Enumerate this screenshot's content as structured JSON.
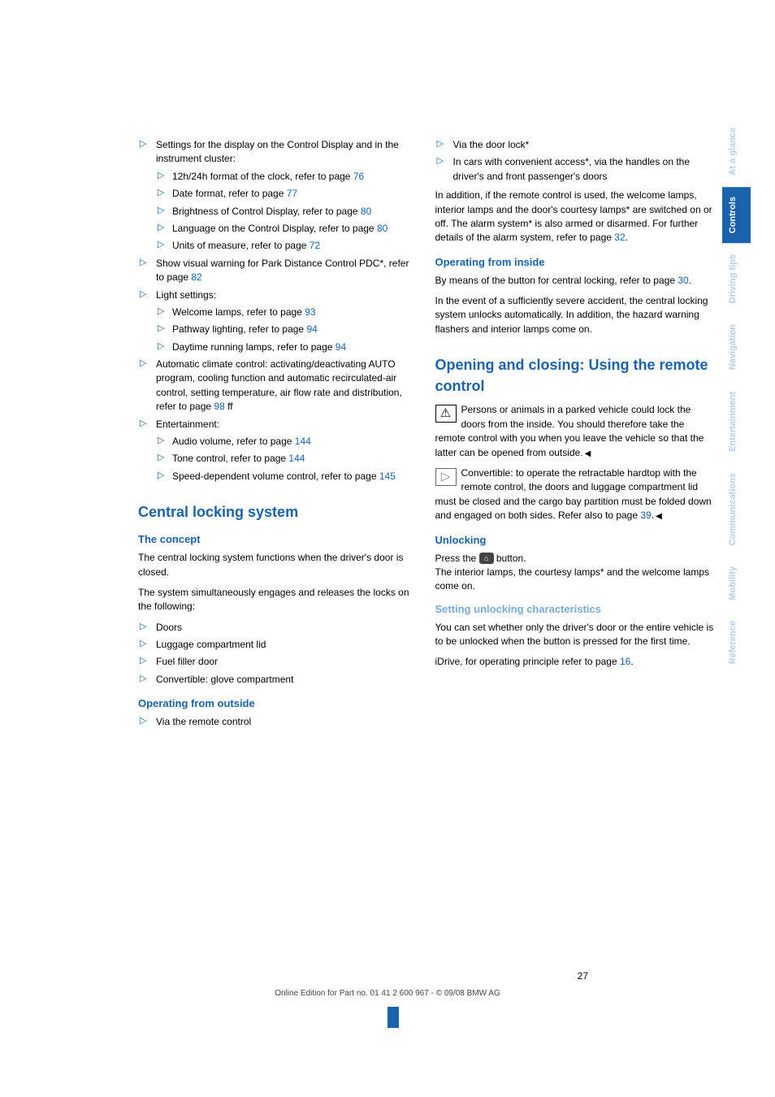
{
  "colors": {
    "primary": "#1a62ac",
    "light": "#7aa9d9",
    "dim_tab": "#b8cde5",
    "text": "#000000",
    "bg": "#ffffff"
  },
  "left": {
    "top_item": "Settings for the display on the Control Display and in the instrument cluster:",
    "top_sub": [
      {
        "t": "12h/24h format of the clock, refer to page ",
        "p": "76"
      },
      {
        "t": "Date format, refer to page ",
        "p": "77"
      },
      {
        "t": "Brightness of Control Display, refer to page ",
        "p": "80"
      },
      {
        "t": "Language on the Control Display, refer to page ",
        "p": "80"
      },
      {
        "t": "Units of measure, refer to page ",
        "p": "72"
      }
    ],
    "pdc": {
      "pre": "Show visual warning for Park Distance Control PDC",
      "star": "*",
      "mid": ", refer to page ",
      "p": "82"
    },
    "light_label": "Light settings:",
    "light_sub": [
      {
        "t": "Welcome lamps, refer to page ",
        "p": "93"
      },
      {
        "t": "Pathway lighting, refer to page ",
        "p": "94"
      },
      {
        "t": "Daytime running lamps, refer to page ",
        "p": "94"
      }
    ],
    "auto": {
      "t": "Automatic climate control: activating/deactivating AUTO program, cooling function and automatic recirculated-air control, setting temperature, air flow rate and distribution, refer to page ",
      "p": "98",
      "suf": " ff"
    },
    "ent_label": "Entertainment:",
    "ent_sub": [
      {
        "t": "Audio volume, refer to page ",
        "p": "144"
      },
      {
        "t": "Tone control, refer to page ",
        "p": "144"
      },
      {
        "t": "Speed-dependent volume control, refer to page ",
        "p": "145"
      }
    ],
    "h_central": "Central locking system",
    "h_concept": "The concept",
    "p_concept1": "The central locking system functions when the driver's door is closed.",
    "p_concept2": "The system simultaneously engages and releases the locks on the following:",
    "concept_items": [
      "Doors",
      "Luggage compartment lid",
      "Fuel filler door",
      "Convertible: glove compartment"
    ],
    "h_outside": "Operating from outside",
    "outside_item": "Via the remote control"
  },
  "right": {
    "top_items": [
      {
        "t": "Via the door lock",
        "star": "*"
      },
      {
        "t": "In cars with convenient access",
        "star": "*",
        "suf": ", via the handles on the driver's and front passenger's doors"
      }
    ],
    "p_addition": {
      "a": "In addition, if the remote control is used, the welcome lamps, interior lamps and the door's courtesy lamps",
      "s1": "*",
      "b": " are switched on or off. The alarm system",
      "s2": "*",
      "c": " is also armed or disarmed. For further details of the alarm system, refer to page ",
      "p": "32",
      "d": "."
    },
    "h_inside": "Operating from inside",
    "p_inside1": {
      "a": "By means of the button for central locking, refer to page ",
      "p": "30",
      "b": "."
    },
    "p_inside2": "In the event of a sufficiently severe accident, the central locking system unlocks automatically. In addition, the hazard warning flashers and interior lamps come on.",
    "h_open": "Opening and closing: Using the remote control",
    "warn": "Persons or animals in a parked vehicle could lock the doors from the inside. You should therefore take the remote control with you when you leave the vehicle so that the latter can be opened from outside.",
    "info": {
      "a": "Convertible: to operate the retractable hardtop with the remote control, the doors and luggage compartment lid must be closed and the cargo bay partition must be folded down and engaged on both sides. Refer also to page ",
      "p": "39",
      "b": "."
    },
    "h_unlock": "Unlocking",
    "p_unlock1a": "Press the ",
    "p_unlock1b": " button.",
    "p_unlock2": {
      "a": "The interior lamps, the courtesy lamps",
      "s": "*",
      "b": " and the welcome lamps come on."
    },
    "h_setchar": "Setting unlocking characteristics",
    "p_setchar": "You can set whether only the driver's door or the entire vehicle is to be unlocked when the button is pressed for the first time.",
    "p_idrive": {
      "a": "iDrive, for operating principle refer to page ",
      "p": "16",
      "b": "."
    }
  },
  "tabs": [
    "At a glance",
    "Controls",
    "Driving tips",
    "Navigation",
    "Entertainment",
    "Communications",
    "Mobility",
    "Reference"
  ],
  "active_tab": 1,
  "page_num": "27",
  "footer": "Online Edition for Part no. 01 41 2 600 967  - © 09/08 BMW AG"
}
